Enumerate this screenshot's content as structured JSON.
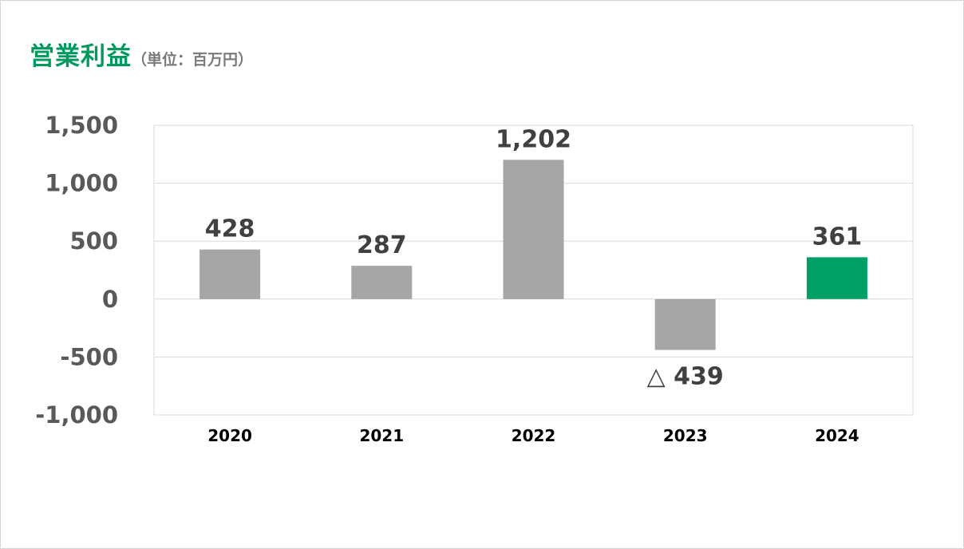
{
  "header": {
    "title": "営業利益",
    "unit": "（単位：百万円）"
  },
  "colors": {
    "title": "#009a5e",
    "bar_default": "#a6a6a6",
    "bar_highlight": "#00a066",
    "grid": "#d9d9d9",
    "axis_text": "#595959",
    "label_text": "#404040"
  },
  "chart_data": {
    "type": "bar",
    "title": "営業利益",
    "subtitle": "（単位：百万円）",
    "categories": [
      "2020",
      "2021",
      "2022",
      "2023",
      "2024"
    ],
    "values": [
      428,
      287,
      1202,
      -439,
      361
    ],
    "data_labels": [
      "428",
      "287",
      "1,202",
      "△ 439",
      "361"
    ],
    "highlight_index": 4,
    "ylim": [
      -1000,
      1500
    ],
    "yticks": [
      1500,
      1000,
      500,
      0,
      -500,
      -1000
    ],
    "ytick_labels": [
      "1,500",
      "1,000",
      "500",
      "0",
      "-500",
      "-1,000"
    ],
    "grid": true,
    "legend": "none"
  }
}
